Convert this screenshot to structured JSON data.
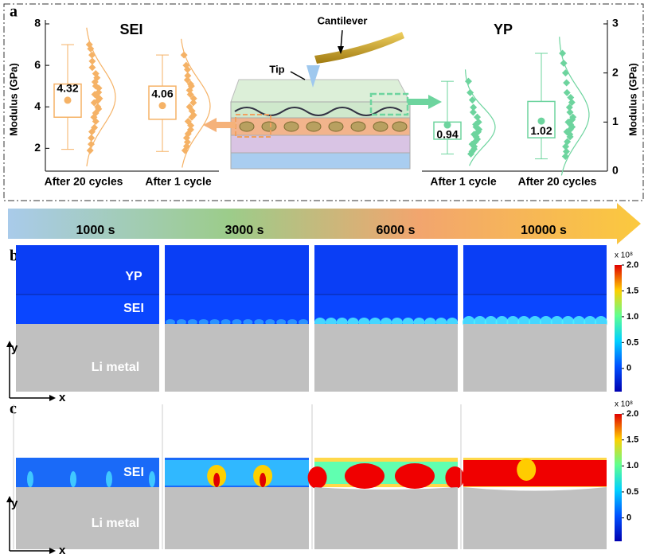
{
  "panel_a": {
    "label": "a",
    "schematic": {
      "cantilever": "Cantilever",
      "tip": "Tip"
    },
    "left": {
      "title": "SEI",
      "y_label": "Modulus (GPa)",
      "ylim": [
        0.9,
        8
      ],
      "yticks": [
        2,
        4,
        6,
        8
      ],
      "color": "#f5b266",
      "groups": [
        {
          "name": "After 20 cycles",
          "mean": 4.32,
          "q1": 3.5,
          "q3": 5.1,
          "whisker_low": 1.95,
          "whisker_high": 7.0,
          "points": [
            7.0,
            6.8,
            6.5,
            6.2,
            5.9,
            5.6,
            5.4,
            5.2,
            5.0,
            4.9,
            4.7,
            4.6,
            4.5,
            4.4,
            4.3,
            4.2,
            4.0,
            3.9,
            3.7,
            3.5,
            3.3,
            3.0,
            2.8,
            2.5,
            2.2,
            1.9
          ]
        },
        {
          "name": "After 1 cycle",
          "mean": 4.06,
          "q1": 3.4,
          "q3": 5.0,
          "whisker_low": 1.85,
          "whisker_high": 6.5,
          "points": [
            6.5,
            6.0,
            5.8,
            5.5,
            5.3,
            5.1,
            5.0,
            4.8,
            4.6,
            4.4,
            4.2,
            4.0,
            3.8,
            3.6,
            3.5,
            3.3,
            3.1,
            2.9,
            2.7,
            2.5,
            2.3,
            2.1,
            1.9
          ]
        }
      ]
    },
    "right": {
      "title": "YP",
      "y_label": "Modulus (GPa)",
      "ylim": [
        0,
        3
      ],
      "yticks": [
        0,
        1,
        2,
        3
      ],
      "color": "#6dd49e",
      "groups": [
        {
          "name": "After 1 cycle",
          "mean": 0.94,
          "q1": 0.65,
          "q3": 1.0,
          "whisker_low": 0.35,
          "whisker_high": 1.83,
          "points": [
            1.83,
            1.6,
            1.45,
            1.3,
            1.2,
            1.1,
            1.0,
            0.95,
            0.9,
            0.85,
            0.8,
            0.75,
            0.7,
            0.65,
            0.6,
            0.55,
            0.5,
            0.45,
            0.4,
            0.35
          ]
        },
        {
          "name": "After 20 cycles",
          "mean": 1.02,
          "q1": 0.68,
          "q3": 1.42,
          "whisker_low": 0.25,
          "whisker_high": 2.4,
          "points": [
            2.4,
            2.2,
            2.0,
            1.8,
            1.6,
            1.5,
            1.4,
            1.3,
            1.2,
            1.1,
            1.05,
            1.0,
            0.95,
            0.9,
            0.85,
            0.8,
            0.75,
            0.7,
            0.6,
            0.5,
            0.4,
            0.3
          ]
        }
      ]
    }
  },
  "timeline": [
    "1000 s",
    "3000 s",
    "6000 s",
    "10000 s"
  ],
  "panel_b": {
    "label": "b",
    "layers": [
      "YP",
      "SEI",
      "Li metal"
    ],
    "axes": [
      "y",
      "x"
    ],
    "colorbar": {
      "multiplier": "x 10⁸",
      "clim": [
        -0.45,
        2.0
      ],
      "ticks": [
        0,
        0.5,
        {
          "value": 1,
          "label": "1.0"
        },
        1.5,
        {
          "value": 2,
          "label": "2.0"
        }
      ]
    }
  },
  "panel_c": {
    "label": "c",
    "layers": [
      "SEI",
      "Li metal"
    ],
    "axes": [
      "y",
      "x"
    ],
    "colorbar": {
      "multiplier": "x 10⁸",
      "clim": [
        -0.45,
        2.0
      ],
      "ticks": [
        0,
        0.5,
        {
          "value": 1,
          "label": "1.0"
        },
        1.5,
        {
          "value": 2,
          "label": "2.0"
        }
      ]
    }
  }
}
